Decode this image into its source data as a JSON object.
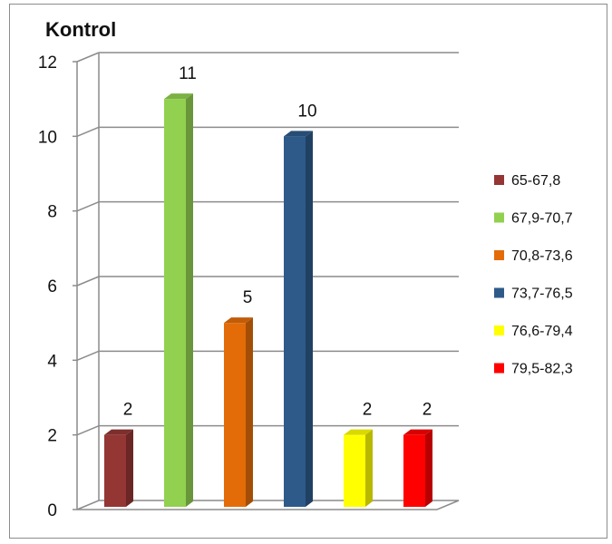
{
  "chart_data": {
    "type": "bar",
    "title": "Kontrol",
    "xlabel": "",
    "ylabel": "",
    "ylim": [
      0,
      12
    ],
    "yticks": [
      0,
      2,
      4,
      6,
      8,
      10,
      12
    ],
    "grid": true,
    "legend_position": "right",
    "show_data_labels": true,
    "categories": [
      "65-67,8",
      "67,9-70,7",
      "70,8-73,6",
      "73,7-76,5",
      "76,6-79,4",
      "79,5-82,3"
    ],
    "values": [
      2,
      11,
      5,
      10,
      2,
      2
    ],
    "colors": [
      "#943634",
      "#92D050",
      "#E36C09",
      "#2E5A8A",
      "#FFFF00",
      "#FF0000"
    ]
  }
}
